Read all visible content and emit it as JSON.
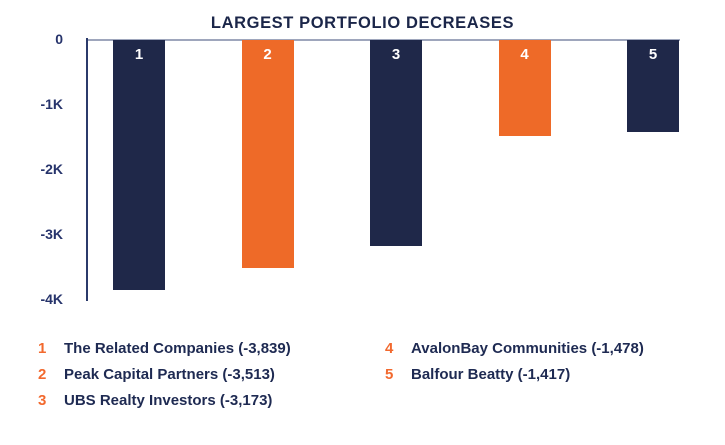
{
  "chart_data": {
    "type": "bar",
    "title": "LARGEST PORTFOLIO DECREASES",
    "categories": [
      "1",
      "2",
      "3",
      "4",
      "5"
    ],
    "values": [
      -3839,
      -3513,
      -3173,
      -1478,
      -1417
    ],
    "series_names": [
      "The Related Companies",
      "Peak Capital Partners",
      "UBS Realty Investors",
      "AvalonBay Communities",
      "Balfour Beatty"
    ],
    "xlabel": "",
    "ylabel": "",
    "ylim": [
      -4000,
      0
    ],
    "yticks": [
      {
        "label": "0",
        "value": 0
      },
      {
        "label": "-1K",
        "value": -1000
      },
      {
        "label": "-2K",
        "value": -2000
      },
      {
        "label": "-3K",
        "value": -3000
      },
      {
        "label": "-4K",
        "value": -4000
      }
    ],
    "grid": "off",
    "legend_position": "bottom",
    "bar_value_labels_on_bars": [
      "1",
      "2",
      "3",
      "4",
      "5"
    ]
  },
  "legend": {
    "columns": [
      [
        {
          "rank": "1",
          "label": "The Related Companies (-3,839)"
        },
        {
          "rank": "2",
          "label": "Peak Capital Partners (-3,513)"
        },
        {
          "rank": "3",
          "label": "UBS Realty Investors (-3,173)"
        }
      ],
      [
        {
          "rank": "4",
          "label": "AvalonBay Communities (-1,478)"
        },
        {
          "rank": "5",
          "label": "Balfour Beatty (-1,417)"
        }
      ]
    ]
  },
  "colors": {
    "navy_bar": "#1f2849",
    "orange_bar": "#ee6a28",
    "bar_sequence": [
      "navy_bar",
      "orange_bar",
      "navy_bar",
      "orange_bar",
      "navy_bar"
    ],
    "title_text": "#1b2649",
    "axis_label_text": "#26336b",
    "legend_text": "#1e2a52",
    "legend_rank": "#f2692e",
    "axis_line": "#2b3a6b",
    "plot_top_line": "#8d96b0",
    "bar_number_text": "#ffffff",
    "background": "#ffffff"
  }
}
